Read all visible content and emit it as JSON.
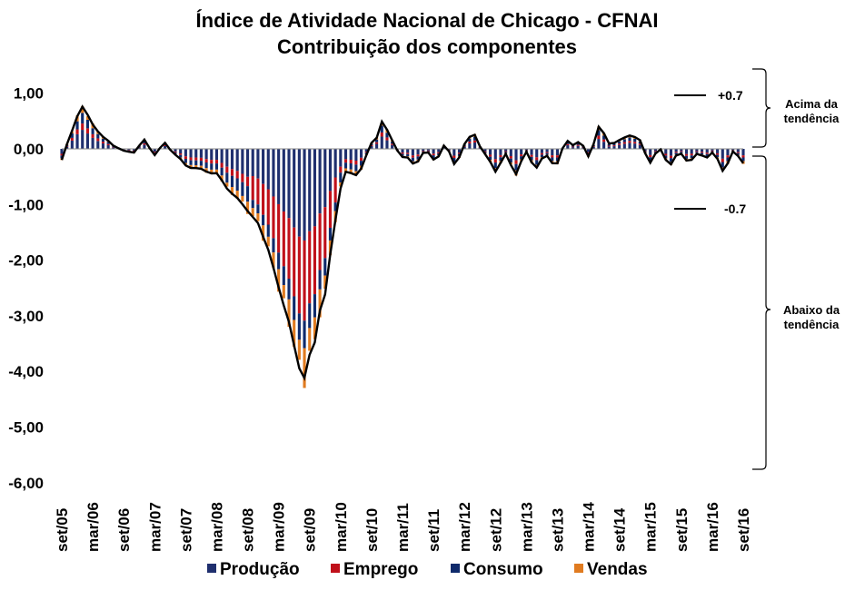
{
  "title_line1": "Índice de Atividade Nacional de Chicago - CFNAI",
  "title_line2": "Contribuição dos componentes",
  "chart_data": {
    "type": "bar",
    "stacked": true,
    "title": "Índice de Atividade Nacional de Chicago - CFNAI\nContribuição dos componentes",
    "xlabel": "",
    "ylabel": "",
    "ylim": [
      -6,
      1.5
    ],
    "y_ticks": [
      "1,00",
      "0,00",
      "-1,00",
      "-2,00",
      "-3,00",
      "-4,00",
      "-5,00",
      "-6,00"
    ],
    "y_tick_values": [
      1,
      0,
      -1,
      -2,
      -3,
      -4,
      -5,
      -6
    ],
    "x_tick_labels": [
      "set/05",
      "mar/06",
      "set/06",
      "mar/07",
      "set/07",
      "mar/08",
      "set/08",
      "mar/09",
      "set/09",
      "mar/10",
      "set/10",
      "mar/11",
      "set/11",
      "mar/12",
      "set/12",
      "mar/13",
      "set/13",
      "mar/14",
      "set/14",
      "mar/15",
      "set/15",
      "mar/16",
      "set/16"
    ],
    "period_start": "set/05",
    "period_end": "set/16",
    "months": 133,
    "colors": {
      "Produção": "#1f2f6e",
      "Emprego": "#c0101a",
      "Consumo": "#0f2a6b",
      "Vendas": "#e07b20",
      "index_line": "#000000"
    },
    "legend": [
      "Produção",
      "Emprego",
      "Consumo",
      "Vendas"
    ],
    "legend_position": "bottom",
    "line_series_anchor_values": [
      [
        0,
        -0.2
      ],
      [
        3,
        0.6
      ],
      [
        4,
        0.75
      ],
      [
        6,
        0.45
      ],
      [
        8,
        0.2
      ],
      [
        12,
        -0.05
      ],
      [
        14,
        -0.05
      ],
      [
        16,
        0.15
      ],
      [
        18,
        -0.1
      ],
      [
        20,
        0.1
      ],
      [
        24,
        -0.3
      ],
      [
        28,
        -0.4
      ],
      [
        30,
        -0.45
      ],
      [
        32,
        -0.7
      ],
      [
        34,
        -0.9
      ],
      [
        36,
        -1.1
      ],
      [
        38,
        -1.35
      ],
      [
        40,
        -1.8
      ],
      [
        42,
        -2.5
      ],
      [
        44,
        -3.1
      ],
      [
        45,
        -3.55
      ],
      [
        46,
        -3.95
      ],
      [
        47,
        -4.1
      ],
      [
        48,
        -3.7
      ],
      [
        49,
        -3.5
      ],
      [
        50,
        -2.9
      ],
      [
        51,
        -2.6
      ],
      [
        52,
        -1.9
      ],
      [
        53,
        -1.3
      ],
      [
        54,
        -0.7
      ],
      [
        55,
        -0.4
      ],
      [
        57,
        -0.5
      ],
      [
        59,
        -0.1
      ],
      [
        61,
        0.2
      ],
      [
        62,
        0.55
      ],
      [
        64,
        0.1
      ],
      [
        66,
        -0.1
      ],
      [
        68,
        -0.3
      ],
      [
        70,
        -0.05
      ],
      [
        72,
        -0.2
      ],
      [
        74,
        0.05
      ],
      [
        76,
        -0.25
      ],
      [
        78,
        0.05
      ],
      [
        80,
        0.3
      ],
      [
        82,
        -0.15
      ],
      [
        84,
        -0.35
      ],
      [
        86,
        -0.15
      ],
      [
        88,
        -0.4
      ],
      [
        90,
        -0.1
      ],
      [
        92,
        -0.3
      ],
      [
        94,
        -0.15
      ],
      [
        96,
        -0.25
      ],
      [
        98,
        0.15
      ],
      [
        100,
        0.1
      ],
      [
        102,
        -0.1
      ],
      [
        104,
        0.35
      ],
      [
        106,
        0.15
      ],
      [
        108,
        0.1
      ],
      [
        110,
        0.3
      ],
      [
        112,
        0.1
      ],
      [
        114,
        -0.2
      ],
      [
        116,
        -0.05
      ],
      [
        118,
        -0.25
      ],
      [
        120,
        -0.1
      ],
      [
        122,
        -0.2
      ],
      [
        124,
        -0.1
      ],
      [
        126,
        -0.1
      ],
      [
        128,
        -0.35
      ],
      [
        130,
        -0.1
      ],
      [
        132,
        -0.2
      ]
    ],
    "annotations": {
      "upper_level": "+0.7",
      "lower_level": "-0.7",
      "upper_label": [
        "Acima da",
        "tendência"
      ],
      "lower_label": [
        "Abaixo da",
        "tendência"
      ]
    }
  }
}
